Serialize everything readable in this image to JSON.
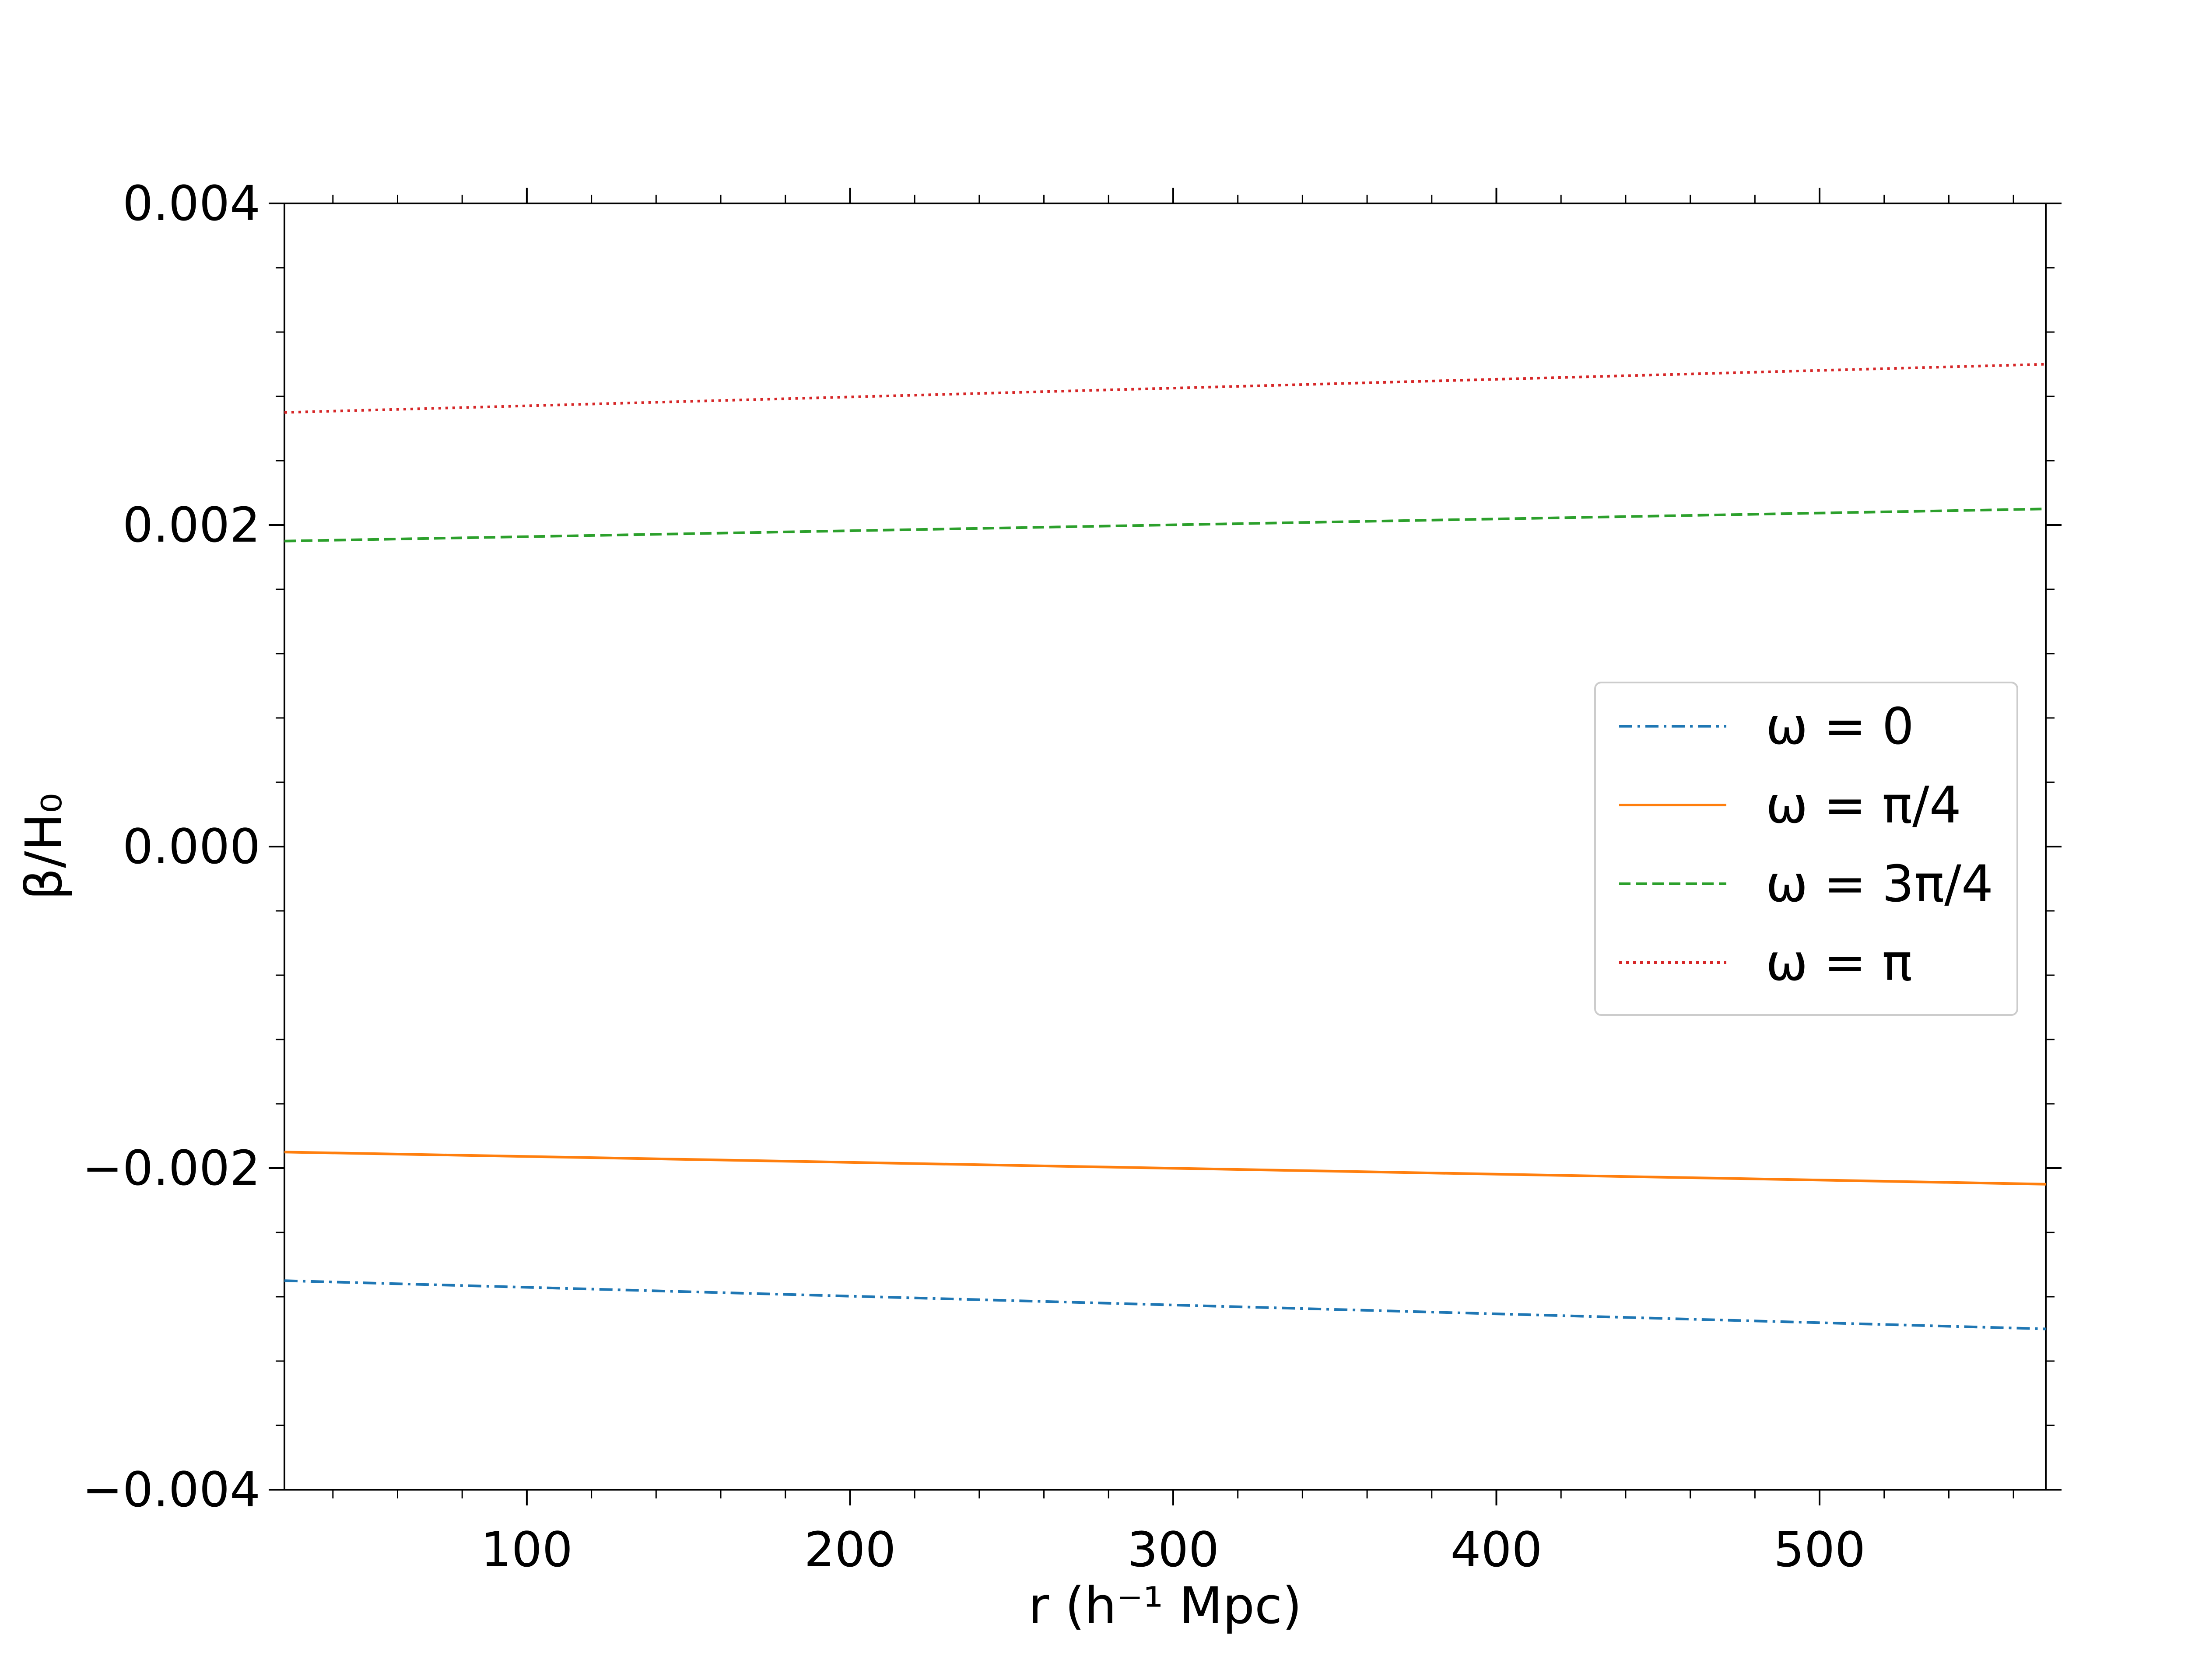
{
  "chart_data": {
    "type": "line",
    "xlabel": "r (h⁻¹ Mpc)",
    "ylabel": "β/H₀",
    "xlim": [
      25,
      570
    ],
    "ylim": [
      -0.004,
      0.004
    ],
    "x_ticks": [
      100,
      200,
      300,
      400,
      500
    ],
    "x_tick_labels": [
      "100",
      "200",
      "300",
      "400",
      "500"
    ],
    "y_ticks": [
      -0.004,
      -0.002,
      0.0,
      0.002,
      0.004
    ],
    "y_tick_labels": [
      "−0.004",
      "−0.002",
      "0.000",
      "0.002",
      "0.004"
    ],
    "x_minor_step": 20,
    "y_minor_step": 0.0004,
    "grid": false,
    "legend_position": "right",
    "series": [
      {
        "name": "ω = 0",
        "color": "#1f77b4",
        "style": "dashdot",
        "x": [
          25,
          570
        ],
        "y": [
          -0.0027,
          -0.003
        ]
      },
      {
        "name": "ω = π/4",
        "color": "#ff7f0e",
        "style": "solid",
        "x": [
          25,
          570
        ],
        "y": [
          -0.0019,
          -0.0021
        ]
      },
      {
        "name": "ω = 3π/4",
        "color": "#2ca02c",
        "style": "dashed",
        "x": [
          25,
          570
        ],
        "y": [
          0.0019,
          0.0021
        ]
      },
      {
        "name": "ω = π",
        "color": "#d62728",
        "style": "dotted",
        "x": [
          25,
          570
        ],
        "y": [
          0.0027,
          0.003
        ]
      }
    ]
  }
}
